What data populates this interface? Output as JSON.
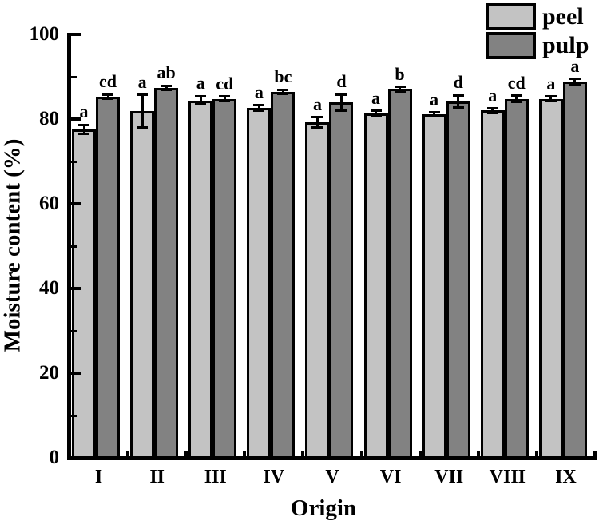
{
  "figure": {
    "background": "#ffffff",
    "text_color": "#000000"
  },
  "chart_data": {
    "type": "bar",
    "title": "",
    "xlabel": "Origin",
    "ylabel": "Moisture content (%)",
    "ylim": [
      0,
      100
    ],
    "yticks_major": [
      0,
      20,
      40,
      60,
      80,
      100
    ],
    "yticks_minor": [
      10,
      30,
      50,
      70,
      90
    ],
    "categories": [
      "I",
      "II",
      "III",
      "IV",
      "V",
      "VI",
      "VII",
      "VIII",
      "IX"
    ],
    "grid": false,
    "legend_position": "top-right",
    "bar_border_color": "#000000",
    "error_bars": true,
    "series": [
      {
        "name": "peel",
        "color": "#c3c3c3",
        "values": [
          77.6,
          81.9,
          84.4,
          82.6,
          79.2,
          81.4,
          81.1,
          82.0,
          84.8
        ],
        "errors": [
          1.0,
          3.8,
          1.0,
          0.7,
          1.2,
          0.5,
          0.5,
          0.5,
          0.5
        ],
        "sig_letters": [
          "a",
          "a",
          "a",
          "a",
          "a",
          "a",
          "a",
          "a",
          "a"
        ]
      },
      {
        "name": "pulp",
        "color": "#828282",
        "values": [
          85.3,
          87.4,
          84.8,
          86.4,
          83.9,
          87.1,
          84.2,
          84.8,
          88.9
        ],
        "errors": [
          0.5,
          0.5,
          0.5,
          0.5,
          1.9,
          0.5,
          1.4,
          0.7,
          0.6
        ],
        "sig_letters": [
          "cd",
          "ab",
          "cd",
          "bc",
          "d",
          "b",
          "d",
          "cd",
          "a"
        ]
      }
    ]
  }
}
